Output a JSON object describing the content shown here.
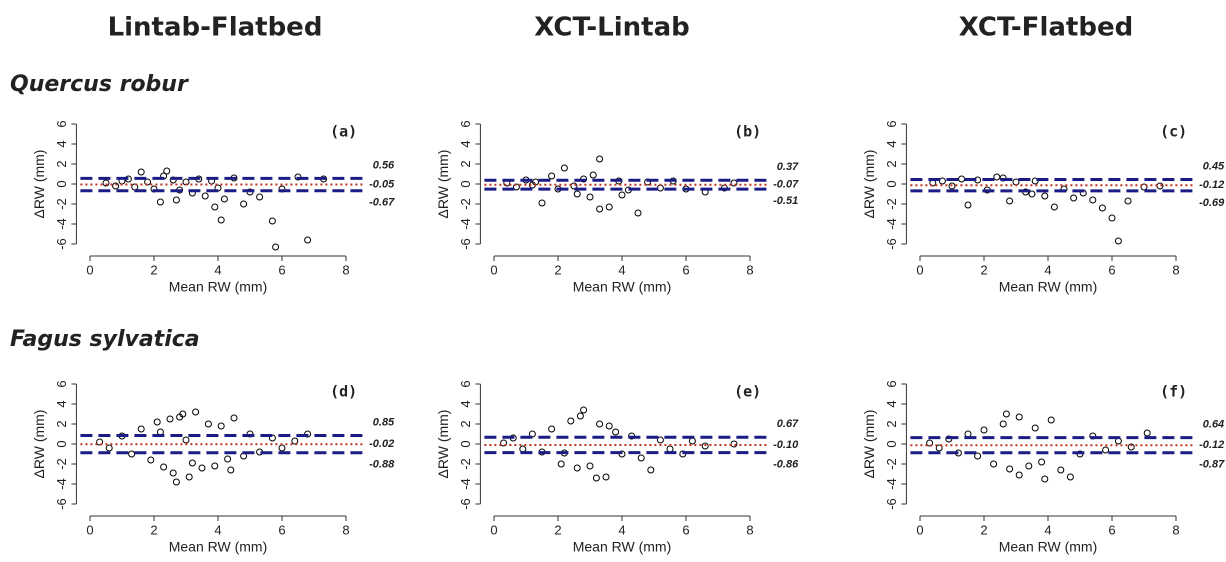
{
  "column_titles": [
    "Lintab-Flatbed",
    "XCT-Lintab",
    "XCT-Flatbed"
  ],
  "row_titles": [
    "Quercus robur",
    "Fagus sylvatica"
  ],
  "chart_data": [
    {
      "type": "scatter",
      "panel_label": "(a)",
      "xlabel": "Mean RW (mm)",
      "ylabel": "ΔRW (mm)",
      "xlim": [
        -0.3,
        8.6
      ],
      "ylim": [
        -6.6,
        6.6
      ],
      "xticks": [
        0,
        2,
        4,
        6,
        8
      ],
      "yticks": [
        -6,
        -4,
        -2,
        0,
        2,
        4,
        6
      ],
      "point_color": "#000000",
      "limit_color": "#1c1c86",
      "mean_color": "#c0301f",
      "limits": {
        "upper": 0.56,
        "mean": -0.05,
        "lower": -0.67
      },
      "x": [
        0.5,
        0.8,
        1.0,
        1.2,
        1.4,
        1.6,
        1.8,
        2.0,
        2.2,
        2.4,
        2.6,
        2.8,
        3.0,
        3.2,
        3.4,
        3.6,
        3.8,
        4.0,
        4.2,
        4.5,
        4.8,
        5.0,
        5.3,
        5.7,
        5.8,
        6.0,
        6.5,
        6.8,
        7.3,
        2.3,
        3.9,
        4.1,
        2.7
      ],
      "values": [
        0.1,
        -0.2,
        0.3,
        0.5,
        -0.3,
        1.2,
        0.2,
        -0.5,
        -1.8,
        1.3,
        0.4,
        -0.6,
        0.2,
        -0.9,
        0.5,
        -1.2,
        0.3,
        -0.4,
        -1.5,
        0.6,
        -2.0,
        -0.8,
        -1.3,
        -3.7,
        -6.3,
        -0.5,
        0.7,
        -5.6,
        0.5,
        0.8,
        -2.3,
        -3.6,
        -1.6
      ]
    },
    {
      "type": "scatter",
      "panel_label": "(b)",
      "xlabel": "Mean RW (mm)",
      "ylabel": "ΔRW (mm)",
      "xlim": [
        -0.3,
        8.6
      ],
      "ylim": [
        -6.6,
        6.6
      ],
      "xticks": [
        0,
        2,
        4,
        6,
        8
      ],
      "yticks": [
        -6,
        -4,
        -2,
        0,
        2,
        4,
        6
      ],
      "point_color": "#000000",
      "limit_color": "#1c1c86",
      "mean_color": "#c0301f",
      "limits": {
        "upper": 0.37,
        "mean": -0.07,
        "lower": -0.51
      },
      "x": [
        0.4,
        0.7,
        1.0,
        1.3,
        1.5,
        1.8,
        2.0,
        2.2,
        2.5,
        2.8,
        3.0,
        3.3,
        3.3,
        3.6,
        3.9,
        4.2,
        4.5,
        4.8,
        5.2,
        5.6,
        6.0,
        6.6,
        7.2,
        7.5,
        2.6,
        1.2,
        3.1,
        4.0
      ],
      "values": [
        0.1,
        -0.3,
        0.4,
        0.2,
        -1.9,
        0.8,
        -0.5,
        1.6,
        -0.2,
        0.5,
        -1.3,
        2.5,
        -2.5,
        -2.3,
        0.3,
        -0.6,
        -2.9,
        0.2,
        -0.4,
        0.3,
        -0.5,
        -0.8,
        -0.4,
        0.1,
        -1.0,
        -0.1,
        0.9,
        -1.1
      ]
    },
    {
      "type": "scatter",
      "panel_label": "(c)",
      "xlabel": "Mean RW (mm)",
      "ylabel": "ΔRW (mm)",
      "xlim": [
        -0.3,
        8.6
      ],
      "ylim": [
        -6.6,
        6.6
      ],
      "xticks": [
        0,
        2,
        4,
        6,
        8
      ],
      "yticks": [
        -6,
        -4,
        -2,
        0,
        2,
        4,
        6
      ],
      "point_color": "#000000",
      "limit_color": "#1c1c86",
      "mean_color": "#c0301f",
      "limits": {
        "upper": 0.45,
        "mean": -0.12,
        "lower": -0.69
      },
      "x": [
        0.4,
        0.7,
        1.0,
        1.3,
        1.5,
        1.8,
        2.1,
        2.4,
        2.8,
        3.0,
        3.3,
        3.6,
        3.9,
        4.2,
        4.5,
        4.8,
        5.1,
        5.4,
        5.7,
        6.0,
        6.2,
        6.5,
        7.0,
        7.5,
        2.6,
        3.5
      ],
      "values": [
        0.1,
        0.3,
        -0.2,
        0.5,
        -2.1,
        0.4,
        -0.6,
        0.7,
        -1.7,
        0.2,
        -0.8,
        0.3,
        -1.2,
        -2.3,
        -0.5,
        -1.4,
        -0.9,
        -1.6,
        -2.4,
        -3.4,
        -5.7,
        -1.7,
        -0.3,
        -0.2,
        0.6,
        -1.0
      ]
    },
    {
      "type": "scatter",
      "panel_label": "(d)",
      "xlabel": "Mean RW (mm)",
      "ylabel": "ΔRW (mm)",
      "xlim": [
        -0.3,
        8.6
      ],
      "ylim": [
        -6.6,
        6.6
      ],
      "xticks": [
        0,
        2,
        4,
        6,
        8
      ],
      "yticks": [
        -6,
        -4,
        -2,
        0,
        2,
        4,
        6
      ],
      "point_color": "#000000",
      "limit_color": "#1c1c86",
      "mean_color": "#c0301f",
      "limits": {
        "upper": 0.85,
        "mean": -0.02,
        "lower": -0.88
      },
      "x": [
        0.3,
        0.6,
        1.0,
        1.3,
        1.6,
        1.9,
        2.1,
        2.3,
        2.5,
        2.7,
        2.9,
        3.1,
        3.3,
        3.5,
        3.7,
        3.9,
        4.1,
        4.3,
        4.5,
        4.8,
        5.0,
        5.3,
        5.7,
        6.0,
        6.4,
        6.8,
        2.6,
        2.8,
        3.2,
        4.4,
        3.0,
        2.2
      ],
      "values": [
        0.2,
        -0.4,
        0.8,
        -1.0,
        1.5,
        -1.6,
        2.2,
        -2.3,
        2.5,
        -3.8,
        3.0,
        -3.3,
        3.2,
        -2.4,
        2.0,
        -2.2,
        1.8,
        -1.5,
        2.6,
        -1.2,
        1.0,
        -0.8,
        0.6,
        -0.4,
        0.3,
        1.0,
        -2.9,
        2.7,
        -1.9,
        -2.6,
        0.4,
        1.2
      ]
    },
    {
      "type": "scatter",
      "panel_label": "(e)",
      "xlabel": "Mean RW (mm)",
      "ylabel": "ΔRW (mm)",
      "xlim": [
        -0.3,
        8.6
      ],
      "ylim": [
        -6.6,
        6.6
      ],
      "xticks": [
        0,
        2,
        4,
        6,
        8
      ],
      "yticks": [
        -6,
        -4,
        -2,
        0,
        2,
        4,
        6
      ],
      "point_color": "#000000",
      "limit_color": "#1c1c86",
      "mean_color": "#c0301f",
      "limits": {
        "upper": 0.67,
        "mean": {
          "value": -0.1,
          "label": "-0.10"
        },
        "lower": -0.86
      },
      "x": [
        0.3,
        0.6,
        0.9,
        1.2,
        1.5,
        1.8,
        2.1,
        2.4,
        2.6,
        2.8,
        3.0,
        3.3,
        3.5,
        3.8,
        4.0,
        4.3,
        4.6,
        4.9,
        5.2,
        5.5,
        5.9,
        6.2,
        6.6,
        7.5,
        2.7,
        3.2,
        3.6,
        2.2
      ],
      "values": [
        0.1,
        0.6,
        -0.5,
        1.0,
        -0.8,
        1.5,
        -2.0,
        2.3,
        -2.4,
        3.4,
        -2.2,
        2.0,
        -3.3,
        1.2,
        -1.0,
        0.8,
        -1.4,
        -2.6,
        0.4,
        -0.5,
        -1.0,
        0.3,
        -0.2,
        0.0,
        2.8,
        -3.4,
        1.8,
        -0.9
      ]
    },
    {
      "type": "scatter",
      "panel_label": "(f)",
      "xlabel": "Mean RW (mm)",
      "ylabel": "ΔRW (mm)",
      "xlim": [
        -0.3,
        8.6
      ],
      "ylim": [
        -6.6,
        6.6
      ],
      "xticks": [
        0,
        2,
        4,
        6,
        8
      ],
      "yticks": [
        -6,
        -4,
        -2,
        0,
        2,
        4,
        6
      ],
      "point_color": "#000000",
      "limit_color": "#1c1c86",
      "mean_color": "#c0301f",
      "limits": {
        "upper": 0.64,
        "mean": -0.12,
        "lower": -0.87
      },
      "x": [
        0.3,
        0.6,
        0.9,
        1.2,
        1.5,
        1.8,
        2.0,
        2.3,
        2.6,
        2.8,
        3.1,
        3.4,
        3.6,
        3.9,
        4.1,
        4.4,
        4.7,
        5.0,
        5.4,
        5.8,
        6.2,
        6.6,
        7.1,
        2.7,
        3.1,
        3.8
      ],
      "values": [
        0.1,
        -0.4,
        0.5,
        -0.9,
        1.0,
        -1.2,
        1.4,
        -2.0,
        2.0,
        -2.5,
        2.7,
        -2.2,
        1.6,
        -3.5,
        2.4,
        -2.6,
        -3.3,
        -1.0,
        0.8,
        -0.6,
        0.3,
        -0.3,
        1.1,
        3.0,
        -3.1,
        -1.8
      ]
    }
  ]
}
